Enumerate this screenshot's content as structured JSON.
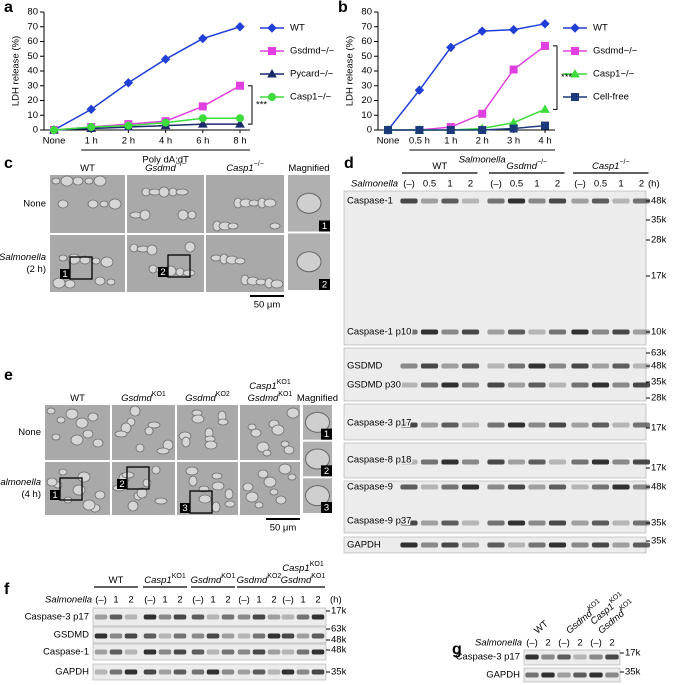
{
  "chart_data": [
    {
      "type": "line",
      "label": "a",
      "ylabel": "LDH release (%)",
      "categories": [
        "None",
        "1 h",
        "2 h",
        "4 h",
        "6 h",
        "8 h"
      ],
      "group_label": "Poly dA:dT",
      "ylim": [
        0,
        80
      ],
      "yticks": [
        0,
        10,
        20,
        30,
        40,
        50,
        60,
        70,
        80
      ],
      "annotation": "***",
      "series": [
        {
          "name": "WT",
          "color": "#1f3fd6",
          "marker": "diamond",
          "values": [
            0,
            14,
            32,
            48,
            62,
            70
          ]
        },
        {
          "name": "Gsdmd−/−",
          "color": "#e040e0",
          "marker": "square",
          "values": [
            0,
            2,
            4,
            6,
            16,
            30
          ]
        },
        {
          "name": "Pycard−/−",
          "color": "#1a2a6c",
          "marker": "triangle",
          "values": [
            0,
            1,
            2,
            3,
            4,
            4
          ]
        },
        {
          "name": "Casp1−/−",
          "color": "#3cdc3c",
          "marker": "circle",
          "values": [
            0,
            2,
            3,
            5,
            8,
            8
          ]
        }
      ]
    },
    {
      "type": "line",
      "label": "b",
      "ylabel": "LDH release (%)",
      "categories": [
        "None",
        "0.5 h",
        "1 h",
        "2 h",
        "3 h",
        "4 h"
      ],
      "group_label": "Salmonella",
      "ylim": [
        0,
        80
      ],
      "yticks": [
        0,
        10,
        20,
        30,
        40,
        50,
        60,
        70,
        80
      ],
      "annotation": "***",
      "series": [
        {
          "name": "WT",
          "color": "#1f3fd6",
          "marker": "diamond",
          "values": [
            0,
            27,
            56,
            67,
            68,
            72
          ]
        },
        {
          "name": "Gsdmd−/−",
          "color": "#e040e0",
          "marker": "square",
          "values": [
            0,
            0,
            2,
            11,
            41,
            57
          ]
        },
        {
          "name": "Casp1−/−",
          "color": "#3cdc3c",
          "marker": "triangle",
          "values": [
            0,
            0,
            0,
            1,
            5,
            14
          ]
        },
        {
          "name": "Cell-free",
          "color": "#1a3a7a",
          "marker": "square",
          "values": [
            0,
            0,
            0,
            0,
            1,
            3
          ]
        }
      ]
    }
  ],
  "panels": {
    "c": {
      "label": "c",
      "columns": [
        [
          {
            "name": "WT"
          }
        ],
        [
          {
            "name": "Gsdmd",
            "sup": "−/−"
          }
        ],
        [
          {
            "name": "Casp1",
            "sup": "−/−"
          }
        ],
        [
          {
            "name": "Magnified"
          }
        ]
      ],
      "rows": [
        [
          "None"
        ],
        [
          "Salmonella",
          "(2 h)"
        ]
      ],
      "insets": [
        "1",
        "2"
      ],
      "scale_bar": "50 μm"
    },
    "d": {
      "label": "d",
      "groups": [
        [
          {
            "name": "WT"
          }
        ],
        [
          {
            "name": "Gsdmd",
            "sup": "−/−"
          }
        ],
        [
          {
            "name": "Casp1",
            "sup": "−/−"
          }
        ]
      ],
      "treatment": "Salmonella",
      "lanes": [
        "(–)",
        "0.5",
        "1",
        "2"
      ],
      "unit": "(h)",
      "blots": [
        {
          "labels": [
            "Caspase-1",
            "Caspase-1 p10"
          ],
          "markers": [
            "48k",
            "35k",
            "28k",
            "17k",
            "10k"
          ]
        },
        {
          "labels": [
            "GSDMD",
            "GSDMD p30"
          ],
          "markers": [
            "63k",
            "48k",
            "35k",
            "28k"
          ]
        },
        {
          "labels": [
            "Caspase-3 p17"
          ],
          "markers": [
            "17k"
          ]
        },
        {
          "labels": [
            "Caspase-8 p18"
          ],
          "markers": [
            "17k"
          ]
        },
        {
          "labels": [
            "Caspase-9",
            "Caspase-9 p37"
          ],
          "markers": [
            "48k",
            "35k"
          ]
        },
        {
          "labels": [
            "GAPDH"
          ],
          "markers": [
            "35k"
          ]
        }
      ]
    },
    "e": {
      "label": "e",
      "columns": [
        [
          {
            "name": "WT"
          }
        ],
        [
          {
            "name": "Gsdmd",
            "sup": "KO1"
          }
        ],
        [
          {
            "name": "Gsdmd",
            "sup": "KO2"
          }
        ],
        [
          {
            "name": "Casp1",
            "sup": "KO1"
          },
          {
            "name": "Gsdmd",
            "sup": "KO1"
          }
        ],
        [
          {
            "name": "Magnified"
          }
        ]
      ],
      "rows": [
        [
          "None"
        ],
        [
          "Salmonella",
          "(4 h)"
        ]
      ],
      "insets": [
        "1",
        "2",
        "3"
      ],
      "scale_bar": "50 μm"
    },
    "f": {
      "label": "f",
      "groups": [
        [
          {
            "name": "WT"
          }
        ],
        [
          {
            "name": "Casp1",
            "sup": "KO1"
          }
        ],
        [
          {
            "name": "Gsdmd",
            "sup": "KO1"
          }
        ],
        [
          {
            "name": "Gsdmd",
            "sup": "KO2"
          }
        ],
        [
          {
            "name": "Casp1",
            "sup": "KO1"
          },
          {
            "name": "Gsdmd",
            "sup": "KO1"
          }
        ]
      ],
      "treatment": "Salmonella",
      "lanes": [
        "(–)",
        "1",
        "2"
      ],
      "unit": "(h)",
      "blots": [
        {
          "labels": [
            "Caspase-3 p17"
          ],
          "markers": [
            "17k"
          ]
        },
        {
          "labels": [
            "GSDMD"
          ],
          "markers": [
            "63k",
            "48k"
          ]
        },
        {
          "labels": [
            "Caspase-1"
          ],
          "markers": [
            "48k"
          ]
        },
        {
          "labels": [
            "GAPDH"
          ],
          "markers": [
            "35k"
          ]
        }
      ]
    },
    "g": {
      "label": "g",
      "groups": [
        [
          {
            "name": "WT"
          }
        ],
        [
          {
            "name": "Gsdmd",
            "sup": "KO1"
          }
        ],
        [
          {
            "name": "Casp1",
            "sup": "KO1"
          },
          {
            "name": "Gsdmd",
            "sup": "KO1"
          }
        ]
      ],
      "treatment": "Salmonella",
      "lanes": [
        "(–)",
        "2"
      ],
      "blots": [
        {
          "labels": [
            "Caspase-3 p17"
          ],
          "markers": [
            "17k"
          ]
        },
        {
          "labels": [
            "GAPDH"
          ],
          "markers": [
            "35k"
          ]
        }
      ]
    }
  }
}
